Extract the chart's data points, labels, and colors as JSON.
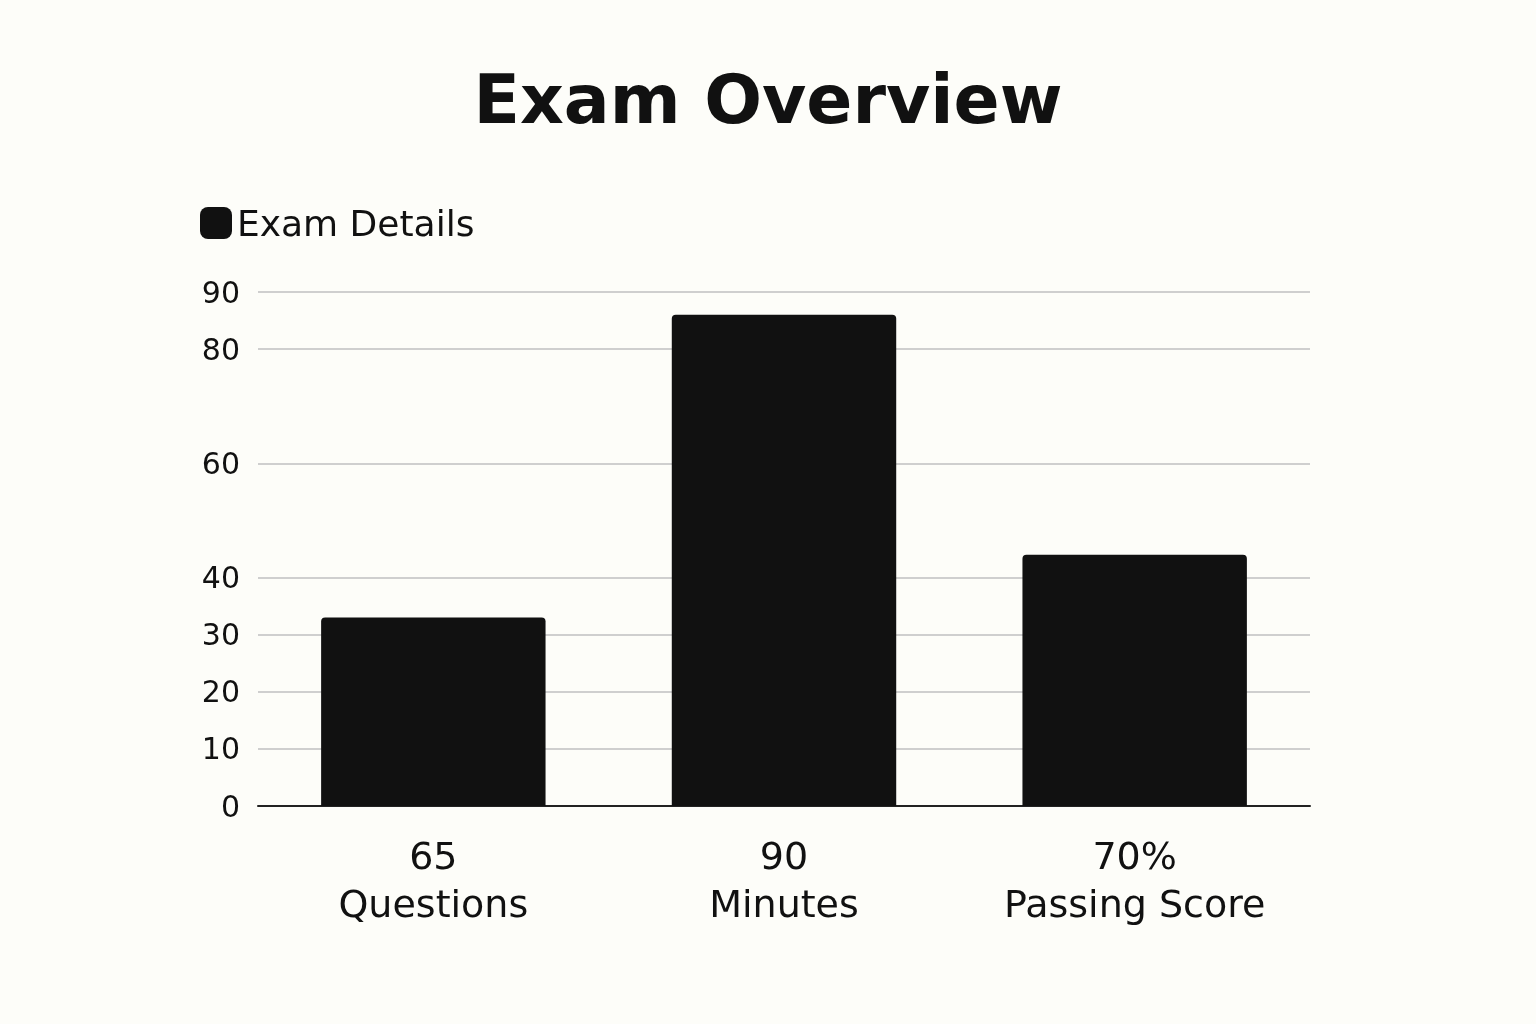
{
  "chart_data": {
    "type": "bar",
    "title": "Exam Overview",
    "categories": [
      "65\nQuestions",
      "90\nMinutes",
      "70%\nPassing Score"
    ],
    "series": [
      {
        "name": "Exam Details",
        "color": "#111111",
        "values": [
          33,
          86,
          44
        ]
      }
    ],
    "ylim": [
      0,
      90
    ],
    "yticks": [
      0,
      10,
      20,
      30,
      40,
      60,
      80,
      90
    ],
    "grid": "y",
    "legend": "top left"
  }
}
